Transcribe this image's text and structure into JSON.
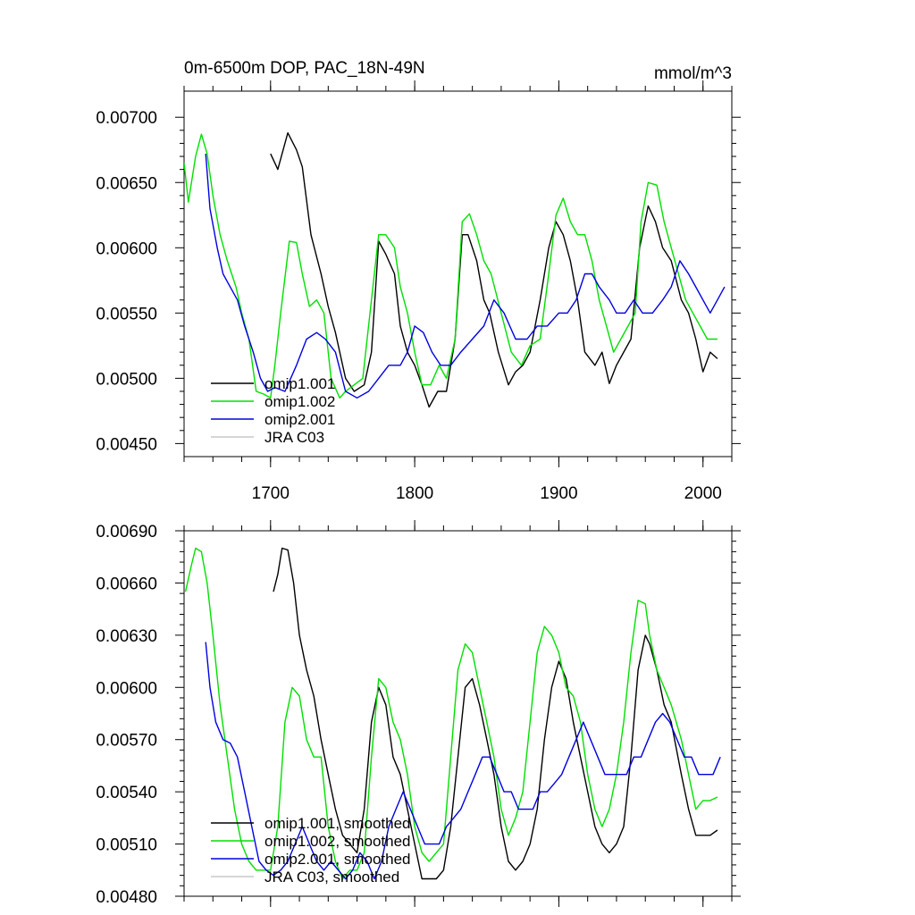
{
  "chart_data": [
    {
      "type": "line",
      "title": "0m-6500m DOP, PAC_18N-49N",
      "units": "mmol/m^3",
      "xlim": [
        1640,
        2020
      ],
      "ylim": [
        0.0044,
        0.0072
      ],
      "xticks": [
        1700,
        1800,
        1900,
        2000
      ],
      "xtick_labels": [
        "1700",
        "1800",
        "1900",
        "2000"
      ],
      "yticks": [
        0.0045,
        0.005,
        0.0055,
        0.006,
        0.0065,
        0.007
      ],
      "ytick_labels": [
        "0.00450",
        "0.00500",
        "0.00550",
        "0.00600",
        "0.00650",
        "0.00700"
      ],
      "legend_position": "bottom-left",
      "series": [
        {
          "name": "omip1.001",
          "color": "#000000",
          "x": [
            1700,
            1705,
            1712,
            1718,
            1722,
            1728,
            1735,
            1740,
            1745,
            1752,
            1758,
            1765,
            1770,
            1775,
            1780,
            1786,
            1790,
            1795,
            1800,
            1805,
            1810,
            1816,
            1822,
            1828,
            1833,
            1837,
            1843,
            1848,
            1852,
            1858,
            1865,
            1870,
            1875,
            1880,
            1887,
            1893,
            1898,
            1903,
            1908,
            1913,
            1918,
            1925,
            1930,
            1935,
            1940,
            1945,
            1950,
            1956,
            1962,
            1967,
            1972,
            1978,
            1985,
            1990,
            1995,
            2000,
            2005,
            2010
          ],
          "y": [
            0.00672,
            0.0066,
            0.00688,
            0.00675,
            0.00662,
            0.0061,
            0.0058,
            0.00555,
            0.00535,
            0.005,
            0.0049,
            0.00495,
            0.0052,
            0.00605,
            0.00595,
            0.0058,
            0.0054,
            0.0052,
            0.0051,
            0.00495,
            0.00478,
            0.0049,
            0.0049,
            0.0053,
            0.0061,
            0.0061,
            0.0059,
            0.0056,
            0.0055,
            0.0052,
            0.00495,
            0.00505,
            0.0051,
            0.0052,
            0.0056,
            0.006,
            0.0062,
            0.0061,
            0.0059,
            0.0056,
            0.0052,
            0.0051,
            0.0052,
            0.00496,
            0.0051,
            0.0052,
            0.0053,
            0.006,
            0.00632,
            0.0062,
            0.006,
            0.0059,
            0.0056,
            0.0055,
            0.0053,
            0.00505,
            0.0052,
            0.00515
          ]
        },
        {
          "name": "omip1.002",
          "color": "#00e000",
          "x": [
            1640,
            1643,
            1648,
            1652,
            1656,
            1660,
            1665,
            1670,
            1676,
            1680,
            1685,
            1690,
            1695,
            1700,
            1703,
            1707,
            1713,
            1718,
            1722,
            1727,
            1732,
            1737,
            1742,
            1748,
            1752,
            1758,
            1764,
            1770,
            1775,
            1780,
            1786,
            1790,
            1795,
            1800,
            1805,
            1811,
            1817,
            1822,
            1828,
            1833,
            1838,
            1843,
            1848,
            1853,
            1860,
            1867,
            1874,
            1880,
            1887,
            1893,
            1898,
            1903,
            1908,
            1913,
            1918,
            1923,
            1928,
            1933,
            1938,
            1943,
            1948,
            1953,
            1957,
            1962,
            1968,
            1973,
            1978,
            1983,
            1988,
            1993,
            1998,
            2003,
            2010
          ],
          "y": [
            0.00665,
            0.00635,
            0.0067,
            0.00687,
            0.00672,
            0.0064,
            0.0061,
            0.0059,
            0.0057,
            0.0055,
            0.0053,
            0.0049,
            0.00488,
            0.00485,
            0.0051,
            0.0055,
            0.00605,
            0.00604,
            0.0058,
            0.00555,
            0.0056,
            0.0055,
            0.005,
            0.00485,
            0.0049,
            0.00495,
            0.005,
            0.0056,
            0.0061,
            0.0061,
            0.006,
            0.0057,
            0.0055,
            0.0052,
            0.00495,
            0.00495,
            0.0051,
            0.005,
            0.0053,
            0.0062,
            0.00626,
            0.0061,
            0.0059,
            0.0058,
            0.0055,
            0.0052,
            0.0051,
            0.00525,
            0.0053,
            0.0058,
            0.00625,
            0.00638,
            0.0062,
            0.0061,
            0.0061,
            0.0059,
            0.0056,
            0.0054,
            0.0052,
            0.0053,
            0.0054,
            0.0055,
            0.0062,
            0.0065,
            0.00648,
            0.0062,
            0.006,
            0.0058,
            0.0056,
            0.0055,
            0.0054,
            0.0053,
            0.0053
          ]
        },
        {
          "name": "omip2.001",
          "color": "#0000e0",
          "x": [
            1655,
            1658,
            1663,
            1667,
            1672,
            1677,
            1682,
            1688,
            1693,
            1698,
            1703,
            1710,
            1718,
            1725,
            1732,
            1738,
            1745,
            1752,
            1760,
            1768,
            1775,
            1782,
            1790,
            1795,
            1800,
            1806,
            1812,
            1818,
            1825,
            1832,
            1840,
            1848,
            1855,
            1862,
            1870,
            1878,
            1885,
            1892,
            1900,
            1906,
            1912,
            1918,
            1923,
            1928,
            1935,
            1940,
            1946,
            1952,
            1958,
            1965,
            1972,
            1978,
            1984,
            1990,
            1995,
            2000,
            2005,
            2010,
            2015
          ],
          "y": [
            0.00672,
            0.0063,
            0.006,
            0.0058,
            0.0057,
            0.0056,
            0.0054,
            0.0052,
            0.005,
            0.0049,
            0.00493,
            0.0049,
            0.0051,
            0.0053,
            0.00535,
            0.0053,
            0.0052,
            0.0049,
            0.00485,
            0.0049,
            0.005,
            0.0051,
            0.0051,
            0.0052,
            0.0054,
            0.00535,
            0.0052,
            0.0051,
            0.0051,
            0.0052,
            0.0053,
            0.0054,
            0.0056,
            0.0055,
            0.0053,
            0.0053,
            0.0054,
            0.0054,
            0.0055,
            0.0055,
            0.0056,
            0.0058,
            0.0058,
            0.0057,
            0.0056,
            0.0055,
            0.0055,
            0.0056,
            0.0055,
            0.0055,
            0.0056,
            0.0057,
            0.0059,
            0.0058,
            0.0057,
            0.0056,
            0.0055,
            0.0056,
            0.0057
          ]
        },
        {
          "name": "JRA C03",
          "color": "#c8c8c8",
          "x": [],
          "y": []
        }
      ]
    },
    {
      "type": "line",
      "title": "",
      "units": "",
      "xlim": [
        1640,
        2020
      ],
      "ylim": [
        0.0048,
        0.0069
      ],
      "xticks": [
        1700,
        1800,
        1900,
        2000
      ],
      "xtick_labels": [],
      "yticks": [
        0.0048,
        0.0051,
        0.0054,
        0.0057,
        0.006,
        0.0063,
        0.0066,
        0.0069
      ],
      "ytick_labels": [
        "0.00480",
        "0.00510",
        "0.00540",
        "0.00570",
        "0.00600",
        "0.00630",
        "0.00660",
        "0.00690"
      ],
      "legend_position": "bottom-left",
      "series": [
        {
          "name": "omip1.001, smoothed",
          "color": "#000000",
          "x": [
            1702,
            1705,
            1708,
            1712,
            1716,
            1720,
            1725,
            1730,
            1735,
            1740,
            1745,
            1750,
            1755,
            1760,
            1765,
            1770,
            1775,
            1780,
            1785,
            1790,
            1795,
            1800,
            1805,
            1810,
            1815,
            1820,
            1825,
            1830,
            1835,
            1840,
            1845,
            1850,
            1855,
            1860,
            1865,
            1870,
            1875,
            1880,
            1885,
            1890,
            1895,
            1900,
            1905,
            1910,
            1915,
            1920,
            1925,
            1930,
            1935,
            1940,
            1945,
            1950,
            1955,
            1960,
            1963,
            1968,
            1973,
            1978,
            1985,
            1990,
            1995,
            2000,
            2005,
            2010
          ],
          "y": [
            0.00655,
            0.00665,
            0.0068,
            0.00679,
            0.0066,
            0.0063,
            0.0061,
            0.00595,
            0.0057,
            0.0055,
            0.0053,
            0.00515,
            0.0051,
            0.00505,
            0.0053,
            0.0058,
            0.006,
            0.0059,
            0.0056,
            0.0055,
            0.0053,
            0.0051,
            0.0049,
            0.0049,
            0.0049,
            0.00495,
            0.0052,
            0.0056,
            0.006,
            0.00605,
            0.0059,
            0.0057,
            0.0055,
            0.0052,
            0.005,
            0.00495,
            0.005,
            0.0051,
            0.0053,
            0.0057,
            0.006,
            0.00615,
            0.00605,
            0.0058,
            0.0056,
            0.0054,
            0.0052,
            0.0051,
            0.00505,
            0.0051,
            0.0052,
            0.0056,
            0.0061,
            0.0063,
            0.00625,
            0.0061,
            0.0059,
            0.0058,
            0.0055,
            0.0053,
            0.00515,
            0.00515,
            0.00515,
            0.00518
          ]
        },
        {
          "name": "omip1.002, smoothed",
          "color": "#00e000",
          "x": [
            1641,
            1645,
            1648,
            1652,
            1656,
            1660,
            1665,
            1670,
            1675,
            1680,
            1685,
            1690,
            1695,
            1700,
            1705,
            1710,
            1715,
            1720,
            1725,
            1730,
            1735,
            1740,
            1745,
            1750,
            1755,
            1760,
            1765,
            1770,
            1775,
            1780,
            1785,
            1790,
            1795,
            1800,
            1805,
            1810,
            1815,
            1820,
            1825,
            1830,
            1835,
            1840,
            1845,
            1850,
            1855,
            1860,
            1865,
            1870,
            1875,
            1880,
            1885,
            1890,
            1895,
            1900,
            1905,
            1910,
            1915,
            1920,
            1925,
            1930,
            1935,
            1940,
            1945,
            1950,
            1955,
            1960,
            1963,
            1968,
            1973,
            1978,
            1985,
            1990,
            1995,
            2000,
            2005,
            2010
          ],
          "y": [
            0.00655,
            0.0067,
            0.0068,
            0.00678,
            0.0066,
            0.0063,
            0.0059,
            0.0056,
            0.0053,
            0.0051,
            0.005,
            0.00495,
            0.00495,
            0.00495,
            0.0052,
            0.0058,
            0.006,
            0.00595,
            0.0057,
            0.0056,
            0.0056,
            0.0052,
            0.005,
            0.0049,
            0.00495,
            0.00495,
            0.00505,
            0.0056,
            0.00605,
            0.006,
            0.0058,
            0.0057,
            0.0055,
            0.0052,
            0.00505,
            0.005,
            0.00505,
            0.0051,
            0.0056,
            0.0061,
            0.00625,
            0.0062,
            0.006,
            0.0058,
            0.0056,
            0.0053,
            0.00515,
            0.00525,
            0.0054,
            0.0058,
            0.0062,
            0.00635,
            0.0063,
            0.0062,
            0.006,
            0.00595,
            0.0058,
            0.0055,
            0.0053,
            0.0052,
            0.0053,
            0.0055,
            0.0058,
            0.0062,
            0.0065,
            0.00648,
            0.0063,
            0.0061,
            0.006,
            0.0059,
            0.0057,
            0.0055,
            0.0053,
            0.00535,
            0.00535,
            0.00537
          ]
        },
        {
          "name": "omip2.001, smoothed",
          "color": "#0000e0",
          "x": [
            1655,
            1658,
            1662,
            1667,
            1672,
            1677,
            1682,
            1687,
            1692,
            1697,
            1702,
            1707,
            1712,
            1717,
            1722,
            1727,
            1732,
            1737,
            1742,
            1747,
            1752,
            1757,
            1762,
            1767,
            1772,
            1777,
            1782,
            1787,
            1792,
            1797,
            1802,
            1807,
            1812,
            1817,
            1822,
            1827,
            1832,
            1837,
            1842,
            1847,
            1852,
            1857,
            1862,
            1867,
            1872,
            1877,
            1882,
            1887,
            1892,
            1897,
            1902,
            1907,
            1912,
            1917,
            1922,
            1927,
            1932,
            1937,
            1942,
            1947,
            1952,
            1957,
            1962,
            1967,
            1972,
            1977,
            1982,
            1987,
            1992,
            1997,
            2002,
            2007,
            2012
          ],
          "y": [
            0.00626,
            0.006,
            0.0058,
            0.0057,
            0.00568,
            0.0056,
            0.0054,
            0.0052,
            0.005,
            0.00495,
            0.00492,
            0.00495,
            0.005,
            0.0051,
            0.0052,
            0.0051,
            0.005,
            0.00495,
            0.005,
            0.00495,
            0.0049,
            0.00495,
            0.00505,
            0.005,
            0.0049,
            0.005,
            0.0052,
            0.0053,
            0.0054,
            0.0053,
            0.0052,
            0.0051,
            0.0051,
            0.0051,
            0.0052,
            0.00525,
            0.0053,
            0.0054,
            0.0055,
            0.0056,
            0.0056,
            0.0055,
            0.0054,
            0.0054,
            0.0053,
            0.0053,
            0.0053,
            0.0054,
            0.0054,
            0.00545,
            0.0055,
            0.0056,
            0.0057,
            0.0058,
            0.0057,
            0.0056,
            0.0055,
            0.0055,
            0.0055,
            0.0055,
            0.0056,
            0.0056,
            0.0057,
            0.0058,
            0.00585,
            0.0058,
            0.0057,
            0.0056,
            0.0056,
            0.0055,
            0.0055,
            0.0055,
            0.0056
          ]
        },
        {
          "name": "JRA C03, smoothed",
          "color": "#c8c8c8",
          "x": [],
          "y": []
        }
      ]
    }
  ]
}
